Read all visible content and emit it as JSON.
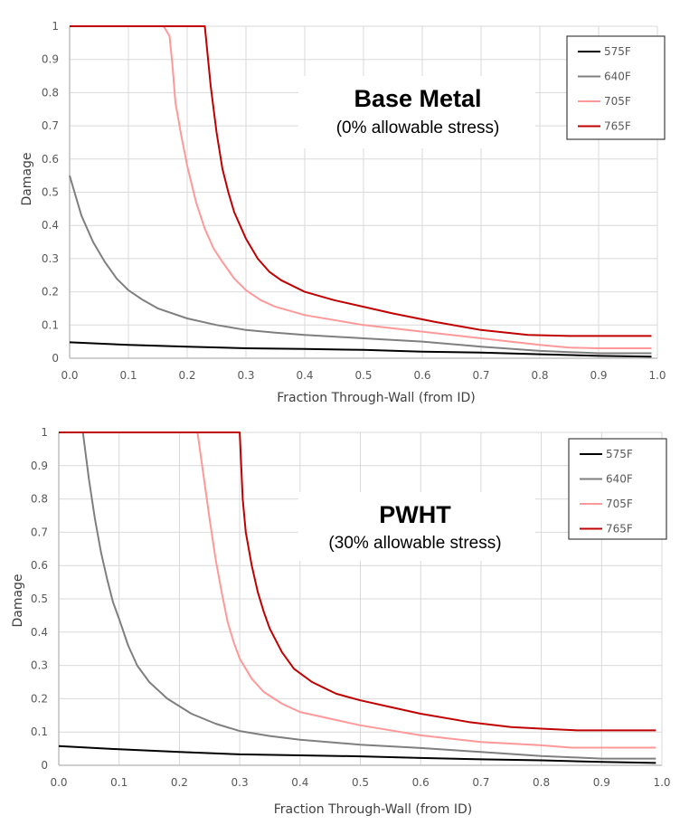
{
  "chart_data": [
    {
      "type": "line",
      "title": "Base Metal",
      "subtitle": "(0% allowable stress)",
      "xlabel": "Fraction Through-Wall (from ID)",
      "ylabel": "Damage",
      "xlim": [
        0,
        1
      ],
      "ylim": [
        0,
        1
      ],
      "grid": true,
      "legend": "top-right",
      "x_ticks": [
        "0.0",
        "0.1",
        "0.2",
        "0.3",
        "0.4",
        "0.5",
        "0.6",
        "0.7",
        "0.8",
        "0.9",
        "1.0"
      ],
      "y_ticks": [
        "0",
        "0.1",
        "0.2",
        "0.3",
        "0.4",
        "0.5",
        "0.6",
        "0.7",
        "0.8",
        "0.9",
        "1"
      ],
      "series": [
        {
          "name": "575F",
          "color": "#000000",
          "x": [
            0,
            0.1,
            0.2,
            0.3,
            0.4,
            0.5,
            0.6,
            0.7,
            0.8,
            0.9,
            0.99
          ],
          "y": [
            0.048,
            0.04,
            0.035,
            0.03,
            0.028,
            0.025,
            0.02,
            0.017,
            0.012,
            0.007,
            0.005
          ]
        },
        {
          "name": "640F",
          "color": "#7f7f7f",
          "x": [
            0,
            0.02,
            0.04,
            0.06,
            0.08,
            0.1,
            0.125,
            0.15,
            0.2,
            0.25,
            0.3,
            0.35,
            0.4,
            0.5,
            0.6,
            0.7,
            0.8,
            0.9,
            0.99
          ],
          "y": [
            0.55,
            0.43,
            0.35,
            0.29,
            0.24,
            0.205,
            0.175,
            0.15,
            0.12,
            0.1,
            0.085,
            0.077,
            0.07,
            0.06,
            0.05,
            0.035,
            0.022,
            0.015,
            0.015
          ]
        },
        {
          "name": "705F",
          "color": "#ff9999",
          "x": [
            0,
            0.16,
            0.17,
            0.175,
            0.18,
            0.19,
            0.2,
            0.215,
            0.23,
            0.245,
            0.26,
            0.28,
            0.3,
            0.325,
            0.35,
            0.4,
            0.45,
            0.5,
            0.6,
            0.7,
            0.8,
            0.85,
            0.9,
            0.99
          ],
          "y": [
            1,
            1,
            0.97,
            0.88,
            0.77,
            0.67,
            0.58,
            0.47,
            0.39,
            0.33,
            0.29,
            0.24,
            0.205,
            0.175,
            0.155,
            0.13,
            0.115,
            0.1,
            0.08,
            0.06,
            0.04,
            0.032,
            0.03,
            0.03
          ]
        },
        {
          "name": "765F",
          "color": "#c00000",
          "x": [
            0,
            0.23,
            0.24,
            0.25,
            0.26,
            0.27,
            0.28,
            0.29,
            0.3,
            0.32,
            0.34,
            0.36,
            0.4,
            0.45,
            0.5,
            0.55,
            0.62,
            0.7,
            0.78,
            0.85,
            0.9,
            0.99
          ],
          "y": [
            1,
            1,
            0.82,
            0.68,
            0.57,
            0.5,
            0.44,
            0.4,
            0.36,
            0.3,
            0.26,
            0.235,
            0.2,
            0.175,
            0.155,
            0.135,
            0.11,
            0.085,
            0.07,
            0.067,
            0.067,
            0.067
          ]
        }
      ]
    },
    {
      "type": "line",
      "title": "PWHT",
      "subtitle": "(30% allowable stress)",
      "xlabel": "Fraction Through-Wall (from ID)",
      "ylabel": "Damage",
      "xlim": [
        0,
        1
      ],
      "ylim": [
        0,
        1
      ],
      "grid": true,
      "legend": "top-right",
      "x_ticks": [
        "0.0",
        "0.1",
        "0.2",
        "0.3",
        "0.4",
        "0.5",
        "0.6",
        "0.7",
        "0.8",
        "0.9",
        "1.0"
      ],
      "y_ticks": [
        "0",
        "0.1",
        "0.2",
        "0.3",
        "0.4",
        "0.5",
        "0.6",
        "0.7",
        "0.8",
        "0.9",
        "1"
      ],
      "series": [
        {
          "name": "575F",
          "color": "#000000",
          "x": [
            0,
            0.1,
            0.2,
            0.3,
            0.4,
            0.5,
            0.6,
            0.7,
            0.8,
            0.9,
            0.99
          ],
          "y": [
            0.058,
            0.048,
            0.04,
            0.033,
            0.03,
            0.027,
            0.022,
            0.018,
            0.015,
            0.01,
            0.007
          ]
        },
        {
          "name": "640F",
          "color": "#7f7f7f",
          "x": [
            0,
            0.04,
            0.05,
            0.06,
            0.07,
            0.08,
            0.09,
            0.1,
            0.115,
            0.13,
            0.15,
            0.18,
            0.22,
            0.26,
            0.3,
            0.35,
            0.4,
            0.5,
            0.6,
            0.7,
            0.8,
            0.9,
            0.99
          ],
          "y": [
            1,
            1,
            0.86,
            0.74,
            0.64,
            0.56,
            0.49,
            0.44,
            0.36,
            0.3,
            0.25,
            0.2,
            0.155,
            0.125,
            0.103,
            0.088,
            0.077,
            0.062,
            0.052,
            0.04,
            0.028,
            0.02,
            0.02
          ]
        },
        {
          "name": "705F",
          "color": "#ff9999",
          "x": [
            0,
            0.23,
            0.24,
            0.25,
            0.26,
            0.27,
            0.28,
            0.29,
            0.3,
            0.32,
            0.34,
            0.37,
            0.4,
            0.45,
            0.5,
            0.6,
            0.7,
            0.8,
            0.85,
            0.9,
            0.99
          ],
          "y": [
            1,
            1,
            0.87,
            0.74,
            0.62,
            0.52,
            0.43,
            0.37,
            0.32,
            0.26,
            0.22,
            0.185,
            0.16,
            0.14,
            0.12,
            0.09,
            0.07,
            0.06,
            0.053,
            0.053,
            0.053
          ]
        },
        {
          "name": "765F",
          "color": "#c00000",
          "x": [
            0,
            0.3,
            0.305,
            0.31,
            0.32,
            0.33,
            0.34,
            0.35,
            0.37,
            0.39,
            0.42,
            0.46,
            0.5,
            0.55,
            0.6,
            0.68,
            0.75,
            0.8,
            0.86,
            0.9,
            0.99
          ],
          "y": [
            1,
            1,
            0.8,
            0.7,
            0.6,
            0.52,
            0.46,
            0.41,
            0.34,
            0.29,
            0.25,
            0.215,
            0.195,
            0.175,
            0.155,
            0.13,
            0.115,
            0.11,
            0.105,
            0.105,
            0.105
          ]
        }
      ]
    }
  ]
}
